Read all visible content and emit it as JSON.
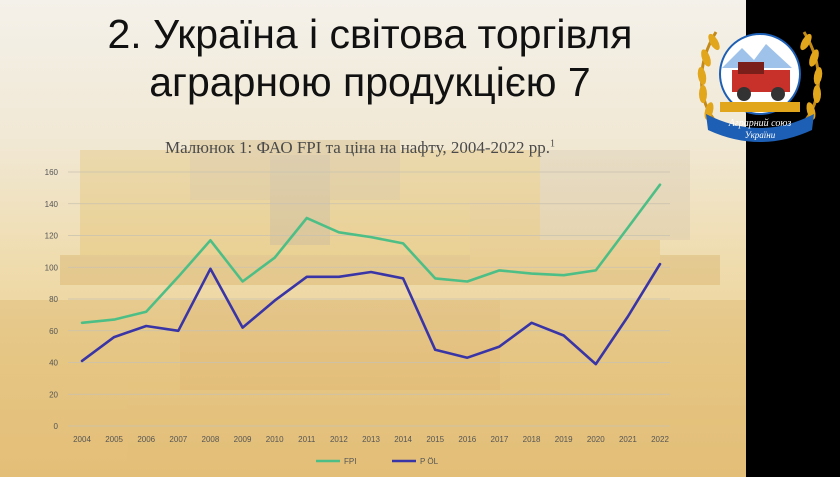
{
  "slide": {
    "title_line1": "2. Україна і світова торгівля",
    "title_line2": "аграрною продукцією 7",
    "subtitle": "Малюнок 1: ФАО FPI та ціна на нафту, 2004-2022 рр.",
    "subtitle_footnote": "1"
  },
  "logo": {
    "ribbon_line1": "Аграрний союз",
    "ribbon_line2": "України",
    "colors": {
      "blue": "#1d5fb4",
      "gold": "#e2a61c",
      "red": "#c8312a"
    }
  },
  "chart_data": {
    "type": "line",
    "title": "Малюнок 1: ФАО FPI та ціна на нафту, 2004-2022 рр.",
    "x": [
      "2004",
      "2005",
      "2006",
      "2007",
      "2008",
      "2009",
      "2010",
      "2011",
      "2012",
      "2013",
      "2014",
      "2015",
      "2016",
      "2017",
      "2018",
      "2019",
      "2020",
      "2021",
      "2022"
    ],
    "ylim": [
      0,
      160
    ],
    "yticks": [
      0,
      20,
      40,
      60,
      80,
      100,
      120,
      140,
      160
    ],
    "grid": true,
    "legend_position": "bottom",
    "series": [
      {
        "name": "FPI",
        "color": "#4dbf86",
        "values": [
          65,
          67,
          72,
          94,
          117,
          91,
          106,
          131,
          122,
          119,
          115,
          93,
          91,
          98,
          96,
          95,
          98,
          125,
          152
        ]
      },
      {
        "name": "P ÖL",
        "color": "#3a35a6",
        "values": [
          41,
          56,
          63,
          60,
          99,
          62,
          79,
          94,
          94,
          97,
          93,
          48,
          43,
          50,
          65,
          57,
          39,
          69,
          102
        ]
      }
    ]
  }
}
